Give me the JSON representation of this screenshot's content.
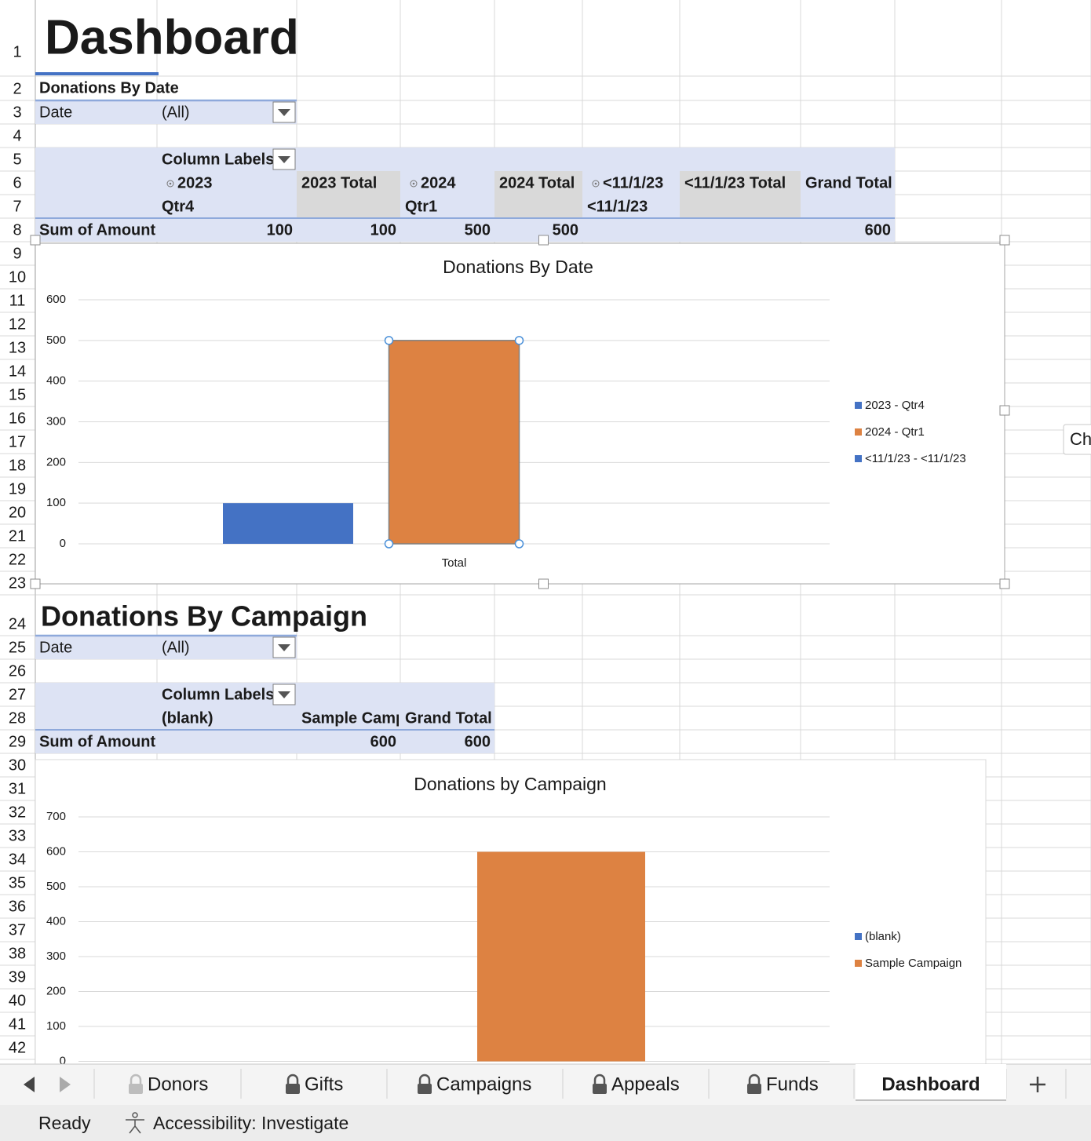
{
  "title": "Dashboard",
  "row_numbers": [
    1,
    2,
    3,
    4,
    5,
    6,
    7,
    8,
    9,
    10,
    11,
    12,
    13,
    14,
    15,
    16,
    17,
    18,
    19,
    20,
    21,
    22,
    23,
    24,
    25,
    26,
    27,
    28,
    29,
    30,
    31,
    32,
    33,
    34,
    35,
    36,
    37,
    38,
    39,
    40,
    41,
    42
  ],
  "pivots": [
    {
      "title": "Donations By Date",
      "filter": {
        "field": "Date",
        "value": "(All)"
      },
      "column_labels": "Column Labels",
      "header_rows": [
        [
          "2023",
          "2023 Total",
          "2024",
          "2024 Total",
          "<11/1/23",
          "<11/1/23 Total",
          "Grand Total"
        ],
        [
          "Qtr4",
          null,
          "Qtr1",
          null,
          "<11/1/23",
          null,
          null
        ]
      ],
      "row_label": "Sum of Amount",
      "values": [
        100,
        100,
        500,
        500,
        null,
        null,
        600
      ]
    },
    {
      "title": "Donations By Campaign",
      "filter": {
        "field": "Date",
        "value": "(All)"
      },
      "column_labels": "Column Labels",
      "header_rows": [
        [
          "(blank)",
          "Sample Campaign",
          "Grand Total"
        ]
      ],
      "row_label": "Sum of Amount",
      "values": [
        null,
        600,
        600
      ]
    }
  ],
  "charts": [
    {
      "type": "bar",
      "title": "Donations By Date",
      "categories": [
        "Total"
      ],
      "series": [
        {
          "name": "2023 - Qtr4",
          "color": "#4472c4",
          "values": [
            100
          ]
        },
        {
          "name": "2024 - Qtr1",
          "color": "#dd8242",
          "values": [
            500
          ]
        },
        {
          "name": "<11/1/23 - <11/1/23",
          "color": "#4472c4",
          "values": [
            null
          ]
        }
      ],
      "ylim": [
        0,
        600
      ],
      "yticks": [
        0,
        100,
        200,
        300,
        400,
        500,
        600
      ],
      "grid": true,
      "legend": "right"
    },
    {
      "type": "bar",
      "title": "Donations by Campaign",
      "series": [
        {
          "name": "(blank)",
          "color": "#4472c4",
          "values": [
            null
          ]
        },
        {
          "name": "Sample Campaign",
          "color": "#dd8242",
          "values": [
            600
          ]
        }
      ],
      "ylim": [
        0,
        700
      ],
      "yticks": [
        0,
        100,
        200,
        300,
        400,
        500,
        600,
        700
      ],
      "grid": true,
      "legend": "right"
    }
  ],
  "side_button": "Ch",
  "sheet_tabs": [
    "Donors",
    "Gifts",
    "Campaigns",
    "Appeals",
    "Funds",
    "Dashboard"
  ],
  "active_tab": 5,
  "status": {
    "mode": "Ready",
    "accessibility": "Accessibility: Investigate"
  }
}
